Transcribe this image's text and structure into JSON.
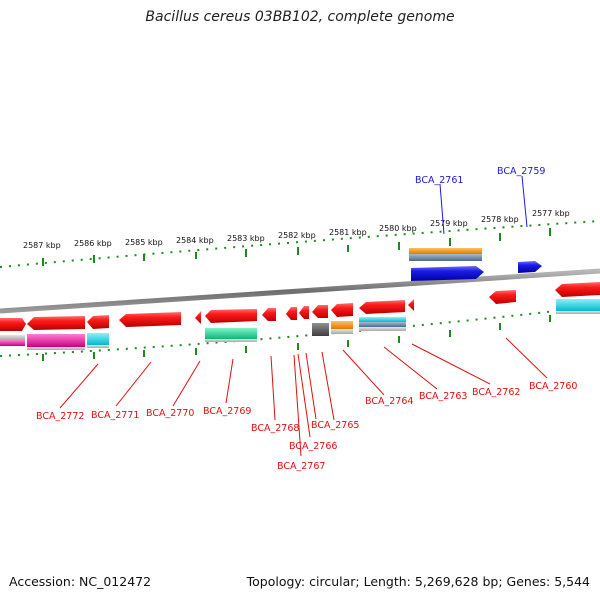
{
  "header": {
    "title": "Bacillus cereus 03BB102, complete genome"
  },
  "footer": {
    "accession": "Accession: NC_012472",
    "topology": "Topology: circular; Length: 5,269,628 bp; Genes: 5,544"
  },
  "scale": {
    "labels": [
      "2587 kbp",
      "2586 kbp",
      "2585 kbp",
      "2584 kbp",
      "2583 kbp",
      "2582 kbp",
      "2581 kbp",
      "2580 kbp",
      "2579 kbp",
      "2578 kbp",
      "2577 kbp"
    ]
  },
  "colors": {
    "forward_label": "#1a1adb",
    "reverse_label": "#e01010",
    "reverse_gene": "#e81212",
    "forward_gene": "#1313d8",
    "orange_track": "#f59a18",
    "steel_track": "#6a86a6",
    "cyan_track": "#14d9ea",
    "teal_track": "#18d89a",
    "magenta_track": "#ea1aa0",
    "gray_track": "#5e5e5e",
    "backbone": "#7a7a7a",
    "ticks": "#1e8a1e"
  },
  "genes": [
    {
      "label": "BCA_2759",
      "strand": "forward"
    },
    {
      "label": "BCA_2761",
      "strand": "forward"
    },
    {
      "label": "BCA_2760",
      "strand": "reverse"
    },
    {
      "label": "BCA_2762",
      "strand": "reverse"
    },
    {
      "label": "BCA_2763",
      "strand": "reverse"
    },
    {
      "label": "BCA_2764",
      "strand": "reverse"
    },
    {
      "label": "BCA_2765",
      "strand": "reverse"
    },
    {
      "label": "BCA_2766",
      "strand": "reverse"
    },
    {
      "label": "BCA_2767",
      "strand": "reverse"
    },
    {
      "label": "BCA_2768",
      "strand": "reverse"
    },
    {
      "label": "BCA_2769",
      "strand": "reverse"
    },
    {
      "label": "BCA_2770",
      "strand": "reverse"
    },
    {
      "label": "BCA_2771",
      "strand": "reverse"
    },
    {
      "label": "BCA_2772",
      "strand": "reverse"
    }
  ]
}
